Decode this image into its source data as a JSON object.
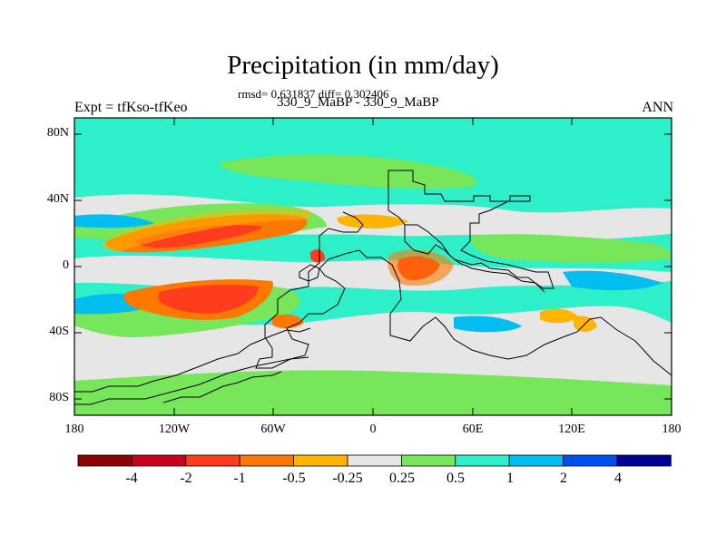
{
  "title": "Precipitation (in mm/day)",
  "stats": "rmsd= 0.631837 diff= 0.302406",
  "center_label": "330_9_MaBP - 330_9_MaBP",
  "left_label": "Expt = tfKso-tfKeo",
  "right_label": "ANN",
  "lat_ticks": [
    "80N",
    "40N",
    "0",
    "40S",
    "80S"
  ],
  "lon_ticks": [
    "180",
    "120W",
    "60W",
    "0",
    "60E",
    "120E",
    "180"
  ],
  "colorbar": {
    "labels": [
      "-4",
      "-2",
      "-1",
      "-0.5",
      "-0.25",
      "0.25",
      "0.5",
      "1",
      "2",
      "4"
    ],
    "colors": [
      "#8b0000",
      "#c8001e",
      "#ff3c1e",
      "#ff7800",
      "#ffb400",
      "#e6e6e6",
      "#78e65a",
      "#2ef0c8",
      "#00bef0",
      "#0050f0",
      "#000096"
    ]
  },
  "colors": {
    "background_field": "#2ef0c8",
    "neutral": "#e6e6e6",
    "light_green": "#78e65a",
    "light_blue": "#00bef0",
    "orange": "#ff7800",
    "yellow": "#ffb400",
    "red": "#ff3c1e"
  }
}
